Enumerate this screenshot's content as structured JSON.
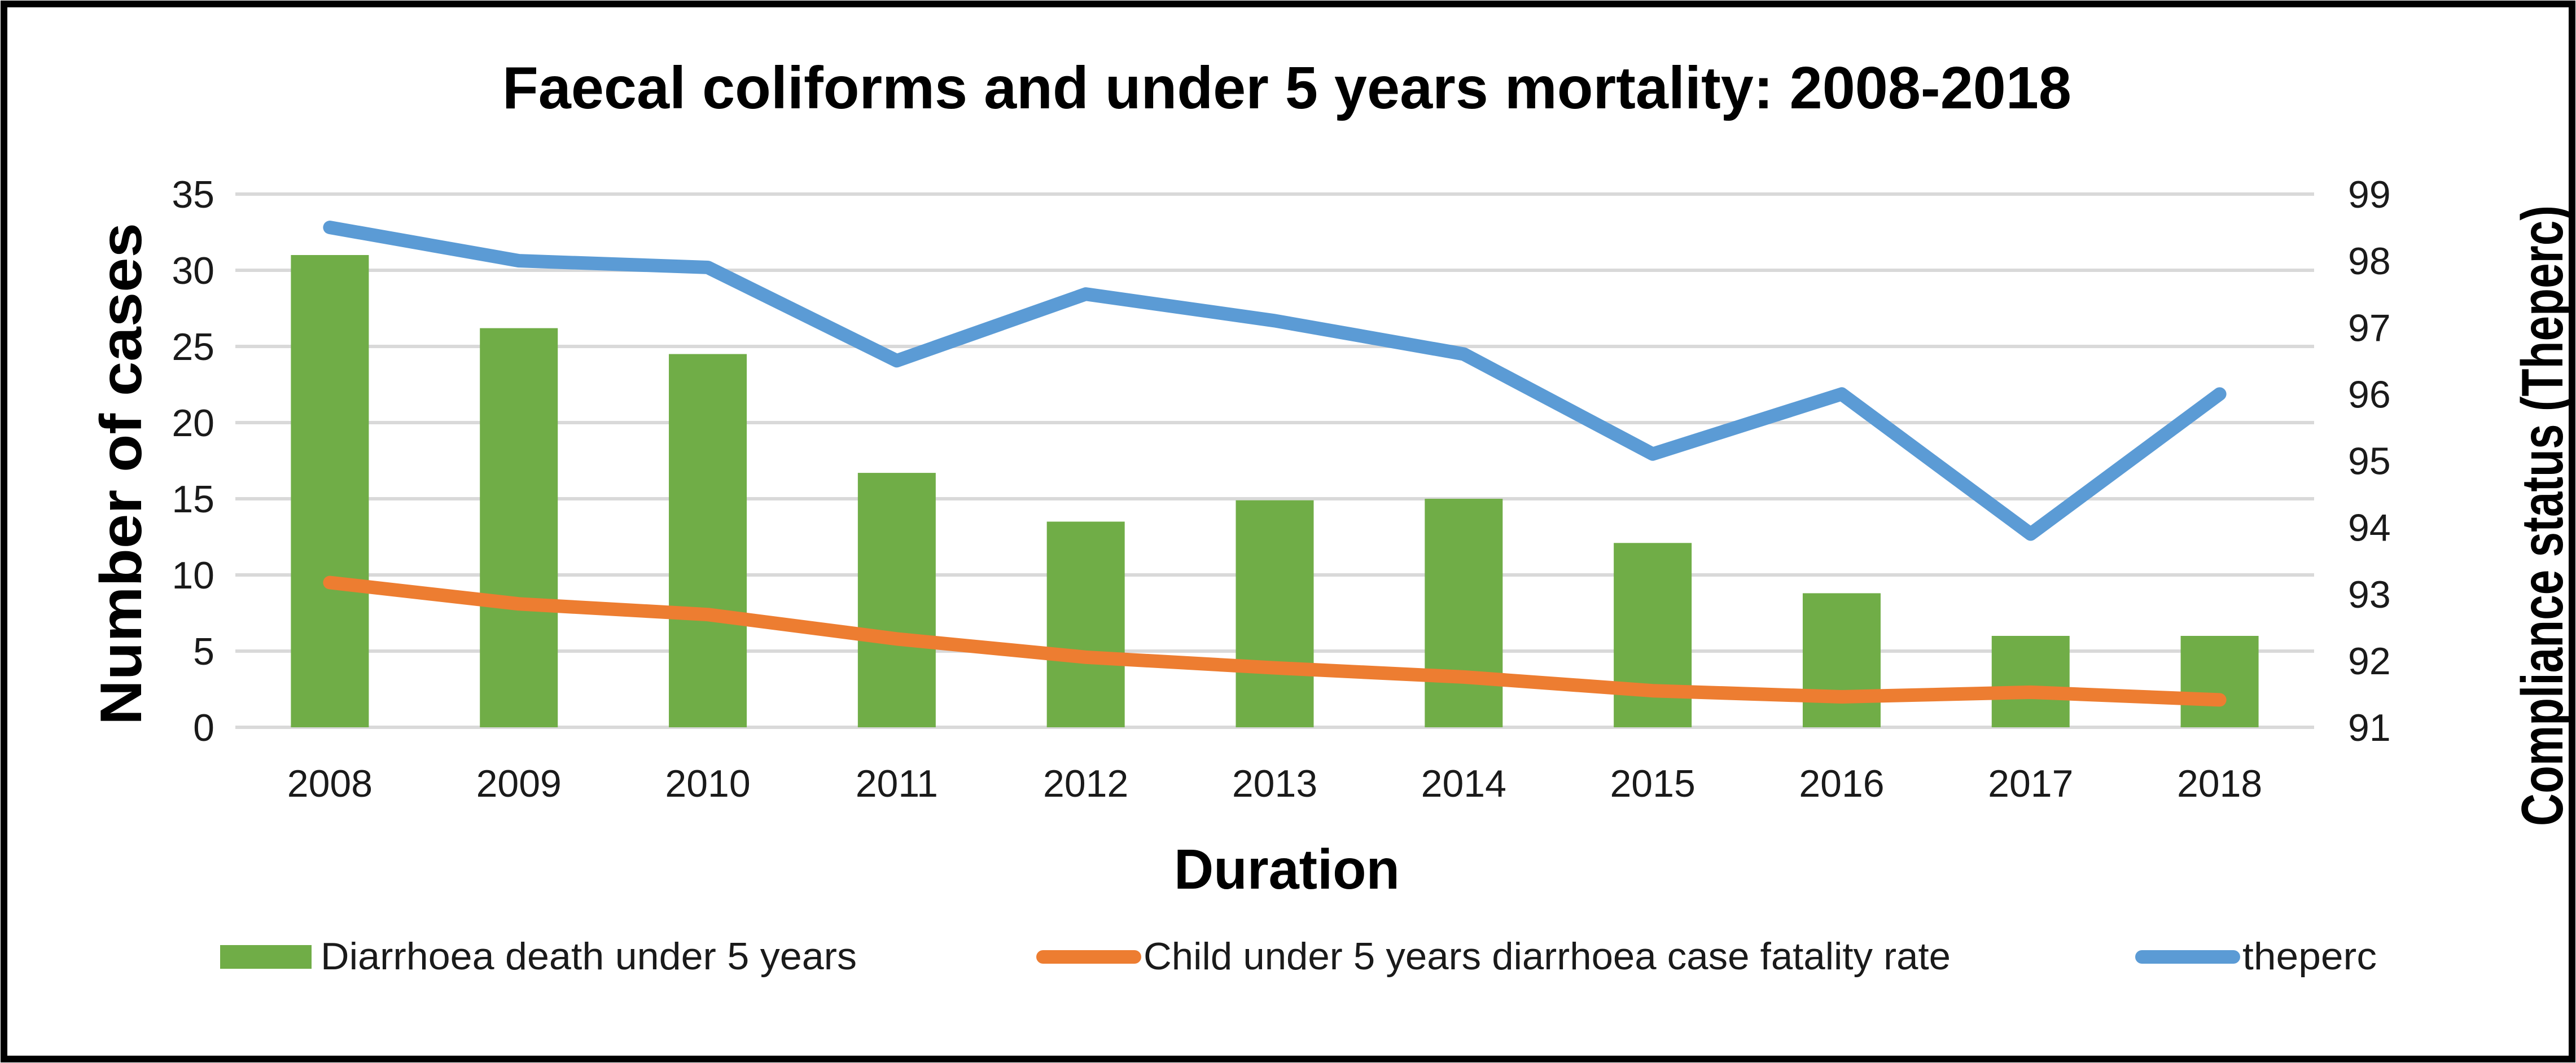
{
  "chart_data": {
    "type": "bar",
    "subtype": "combo-bar-and-lines",
    "title": "Faecal coliforms and under 5 years mortality: 2008-2018",
    "xlabel": "Duration",
    "ylabel_left": "Number of cases",
    "ylabel_right": "Compliance status (Theperc)",
    "categories": [
      "2008",
      "2009",
      "2010",
      "2011",
      "2012",
      "2013",
      "2014",
      "2015",
      "2016",
      "2017",
      "2018"
    ],
    "left_axis": {
      "min": 0,
      "max": 35,
      "step": 5,
      "ticks": [
        0,
        5,
        10,
        15,
        20,
        25,
        30,
        35
      ]
    },
    "right_axis": {
      "min": 91,
      "max": 99,
      "step": 1,
      "ticks": [
        91,
        92,
        93,
        94,
        95,
        96,
        97,
        98,
        99
      ]
    },
    "series": [
      {
        "name": "Diarrhoea death under 5 years",
        "type": "bar",
        "axis": "left",
        "color": "#70AD47",
        "values": [
          31,
          26.2,
          24.5,
          16.7,
          13.5,
          14.9,
          15,
          12.1,
          8.8,
          6,
          6
        ]
      },
      {
        "name": "Child under 5 years diarrhoea case fatality rate",
        "type": "line",
        "axis": "left",
        "color": "#ED7D31",
        "values": [
          9.5,
          8.1,
          7.4,
          5.8,
          4.6,
          3.9,
          3.3,
          2.4,
          2,
          2.3,
          1.8
        ]
      },
      {
        "name": "theperc",
        "type": "line",
        "axis": "right",
        "color": "#5B9BD5",
        "values": [
          98.5,
          98,
          97.9,
          96.5,
          97.5,
          97.1,
          96.6,
          95.1,
          96,
          93.9,
          96
        ]
      }
    ],
    "grid": true,
    "legend_position": "bottom",
    "colors": {
      "bar_green": "#70AD47",
      "line_orange": "#ED7D31",
      "line_blue": "#5B9BD5",
      "gridline": "#D9D9D9",
      "text": "#000000",
      "background": "#FFFFFF",
      "border": "#000000"
    }
  }
}
